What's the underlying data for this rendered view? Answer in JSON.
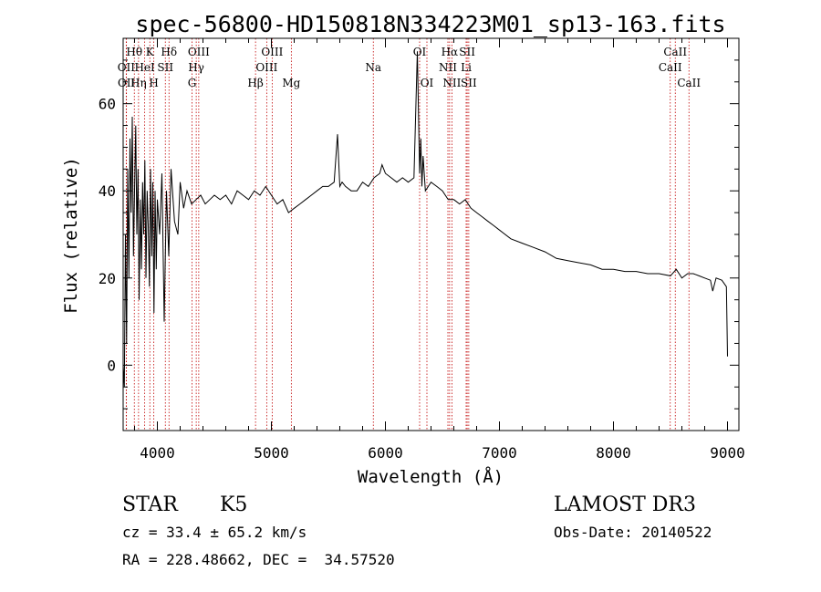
{
  "chart_data": {
    "type": "line",
    "title": "spec-56800-HD150818N334223M01_sp13-163.fits",
    "xlabel": "Wavelength (Å)",
    "ylabel": "Flux (relative)",
    "xlim": [
      3700,
      9100
    ],
    "ylim": [
      -15,
      75
    ],
    "xticks": [
      4000,
      5000,
      6000,
      7000,
      8000,
      9000
    ],
    "yticks": [
      0,
      20,
      40,
      60
    ],
    "series": [
      {
        "name": "flux",
        "x": [
          3700,
          3710,
          3720,
          3730,
          3740,
          3750,
          3760,
          3770,
          3780,
          3790,
          3800,
          3810,
          3820,
          3830,
          3840,
          3850,
          3860,
          3870,
          3880,
          3890,
          3900,
          3910,
          3920,
          3930,
          3940,
          3950,
          3960,
          3970,
          3980,
          3990,
          4000,
          4020,
          4040,
          4060,
          4080,
          4100,
          4120,
          4150,
          4180,
          4200,
          4230,
          4260,
          4300,
          4340,
          4380,
          4420,
          4460,
          4500,
          4550,
          4600,
          4650,
          4700,
          4750,
          4800,
          4850,
          4900,
          4950,
          5000,
          5050,
          5100,
          5150,
          5200,
          5250,
          5300,
          5350,
          5400,
          5450,
          5500,
          5550,
          5580,
          5600,
          5620,
          5650,
          5700,
          5750,
          5800,
          5850,
          5900,
          5950,
          5970,
          6000,
          6050,
          6100,
          6150,
          6200,
          6250,
          6280,
          6300,
          6310,
          6320,
          6330,
          6350,
          6400,
          6450,
          6500,
          6550,
          6600,
          6650,
          6700,
          6750,
          6800,
          6850,
          6900,
          6950,
          7000,
          7100,
          7200,
          7300,
          7400,
          7500,
          7600,
          7700,
          7800,
          7900,
          8000,
          8100,
          8200,
          8300,
          8400,
          8500,
          8550,
          8600,
          8650,
          8700,
          8750,
          8800,
          8850,
          8870,
          8900,
          8950,
          8990,
          9000
        ],
        "y": [
          0,
          -5,
          30,
          5,
          45,
          20,
          52,
          35,
          57,
          25,
          40,
          55,
          30,
          45,
          15,
          38,
          22,
          42,
          30,
          47,
          20,
          40,
          32,
          18,
          45,
          25,
          42,
          12,
          40,
          22,
          38,
          30,
          44,
          10,
          40,
          25,
          45,
          33,
          30,
          42,
          36,
          40,
          37,
          38,
          39,
          37,
          38,
          39,
          38,
          39,
          37,
          40,
          39,
          38,
          40,
          39,
          41,
          39,
          37,
          38,
          35,
          36,
          37,
          38,
          39,
          40,
          41,
          41,
          42,
          53,
          41,
          42,
          41,
          40,
          40,
          42,
          41,
          43,
          44,
          46,
          44,
          43,
          42,
          43,
          42,
          43,
          72,
          44,
          52,
          41,
          48,
          40,
          42,
          41,
          40,
          38,
          38,
          37,
          38,
          36,
          35,
          34,
          33,
          32,
          31,
          29,
          28,
          27,
          26,
          24.5,
          24,
          23.5,
          23,
          22,
          22,
          21.5,
          21.5,
          21,
          21,
          20.5,
          22,
          20,
          21,
          21,
          20.5,
          20,
          19.5,
          17,
          20,
          19.5,
          18,
          2
        ]
      }
    ],
    "lines": [
      {
        "label": "Hθ",
        "wave": 3798,
        "row": 0
      },
      {
        "label": "OII",
        "wave": 3727,
        "row": 1
      },
      {
        "label": "OII",
        "wave": 3729,
        "row": 2
      },
      {
        "label": "K",
        "wave": 3934,
        "row": 0
      },
      {
        "label": "HeI",
        "wave": 3889,
        "row": 1
      },
      {
        "label": "Hη",
        "wave": 3835,
        "row": 2
      },
      {
        "label": "Hδ",
        "wave": 4102,
        "row": 0
      },
      {
        "label": "SII",
        "wave": 4070,
        "row": 1
      },
      {
        "label": "H",
        "wave": 3969,
        "row": 2
      },
      {
        "label": "OIII",
        "wave": 4363,
        "row": 0
      },
      {
        "label": "Hγ",
        "wave": 4341,
        "row": 1
      },
      {
        "label": "G",
        "wave": 4304,
        "row": 2
      },
      {
        "label": "OIII",
        "wave": 5007,
        "row": 0
      },
      {
        "label": "OIII",
        "wave": 4959,
        "row": 1
      },
      {
        "label": "Hβ",
        "wave": 4861,
        "row": 2
      },
      {
        "label": "Mg",
        "wave": 5175,
        "row": 2
      },
      {
        "label": "Na",
        "wave": 5894,
        "row": 1
      },
      {
        "label": "OI",
        "wave": 6300,
        "row": 0
      },
      {
        "label": "OI",
        "wave": 6364,
        "row": 2
      },
      {
        "label": "Hα",
        "wave": 6563,
        "row": 0
      },
      {
        "label": "NII",
        "wave": 6548,
        "row": 1
      },
      {
        "label": "NII",
        "wave": 6583,
        "row": 2
      },
      {
        "label": "SII",
        "wave": 6717,
        "row": 0
      },
      {
        "label": "Li",
        "wave": 6708,
        "row": 1
      },
      {
        "label": "SII",
        "wave": 6731,
        "row": 2
      },
      {
        "label": "CaII",
        "wave": 8542,
        "row": 0
      },
      {
        "label": "CaII",
        "wave": 8498,
        "row": 1
      },
      {
        "label": "CaII",
        "wave": 8662,
        "row": 2
      }
    ]
  },
  "info": {
    "class": "STAR",
    "subclass": "K5",
    "survey": "LAMOST DR3",
    "cz": "cz = 33.4 ± 65.2 km/s",
    "obsdate": "Obs-Date: 20140522",
    "radec": "RA = 228.48662, DEC =  34.57520"
  },
  "colors": {
    "line_marker": "#c00000",
    "spectrum": "#000000"
  }
}
